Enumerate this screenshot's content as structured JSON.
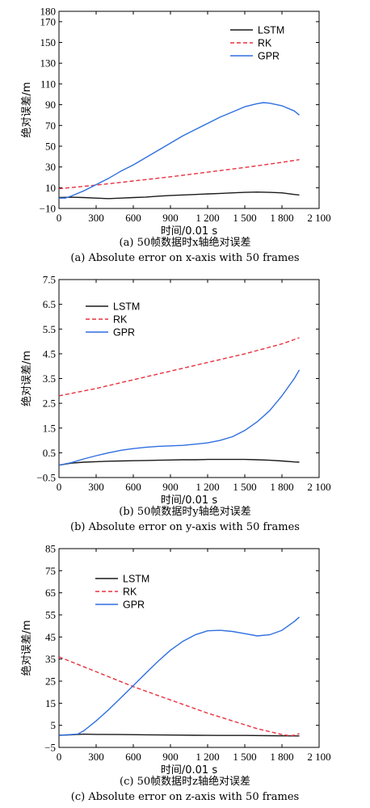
{
  "colors": {
    "lstm": "#1a1a1a",
    "rk": "#e8303e",
    "gpr": "#2f6fe0"
  },
  "chart_data": [
    {
      "type": "line",
      "ylabel": "绝对误差/m",
      "xlabel": "时间/0.01 s",
      "caption_cn": "(a) 50帧数据时x轴绝对误差",
      "caption_en": "(a) Absolute error on x-axis with 50 frames",
      "xlim": [
        0,
        2100
      ],
      "ylim": [
        -10,
        180
      ],
      "xticks": [
        0,
        300,
        600,
        900,
        1200,
        1500,
        1800,
        2100
      ],
      "xtick_labels": [
        "0",
        "300",
        "600",
        "900",
        "1 200",
        "1 500",
        "1 800",
        "2 100"
      ],
      "yticks": [
        -10,
        10,
        30,
        50,
        70,
        90,
        110,
        130,
        150,
        170
      ],
      "ytick_labels": [
        "−10",
        "10",
        "30",
        "50",
        "70",
        "90",
        "110",
        "130",
        "150",
        "170"
      ],
      "ytop_label": "180",
      "legend": "top-right",
      "series": [
        {
          "name": "LSTM",
          "style": "solid",
          "color": "#1a1a1a",
          "x": [
            0,
            100,
            200,
            300,
            400,
            500,
            600,
            700,
            800,
            900,
            1000,
            1100,
            1200,
            1300,
            1400,
            1500,
            1600,
            1700,
            1800,
            1900,
            1940
          ],
          "y": [
            0.5,
            0.8,
            0.5,
            0,
            -0.5,
            0,
            0.5,
            1,
            1.8,
            2.5,
            3,
            3.5,
            4,
            4.5,
            5,
            5.5,
            5.8,
            5.5,
            5,
            3.5,
            3
          ]
        },
        {
          "name": "RK",
          "style": "dashed",
          "color": "#e8303e",
          "x": [
            0,
            300,
            600,
            900,
            1200,
            1500,
            1800,
            1940
          ],
          "y": [
            9,
            12.5,
            16.5,
            20.5,
            25,
            29.5,
            34.5,
            37
          ]
        },
        {
          "name": "GPR",
          "style": "solid",
          "color": "#2f6fe0",
          "x": [
            0,
            50,
            100,
            200,
            300,
            400,
            500,
            600,
            700,
            800,
            900,
            1000,
            1100,
            1200,
            1300,
            1400,
            1500,
            1600,
            1650,
            1700,
            1800,
            1900,
            1940
          ],
          "y": [
            0,
            0,
            2,
            7,
            13,
            19,
            26,
            32,
            39,
            46,
            53,
            60,
            66,
            72,
            78,
            83,
            88,
            91,
            92,
            91.5,
            89,
            84,
            80
          ]
        }
      ]
    },
    {
      "type": "line",
      "ylabel": "绝对误差/m",
      "xlabel": "时间/0.01 s",
      "caption_cn": "(b) 50帧数据时y轴绝对误差",
      "caption_en": "(b) Absolute error on y-axis with 50 frames",
      "xlim": [
        0,
        2100
      ],
      "ylim": [
        -0.5,
        7.5
      ],
      "xticks": [
        0,
        300,
        600,
        900,
        1200,
        1500,
        1800,
        2100
      ],
      "xtick_labels": [
        "0",
        "300",
        "600",
        "900",
        "1 200",
        "1 500",
        "1 800",
        "2 100"
      ],
      "yticks": [
        -0.5,
        0.5,
        1.5,
        2.5,
        3.5,
        4.5,
        5.5,
        6.5,
        7.5
      ],
      "ytick_labels": [
        "−0.5",
        "0.5",
        "1.5",
        "2.5",
        "3.5",
        "4.5",
        "5.5",
        "6.5",
        "7.5"
      ],
      "legend": "top-left",
      "series": [
        {
          "name": "LSTM",
          "style": "solid",
          "color": "#1a1a1a",
          "x": [
            0,
            100,
            200,
            300,
            400,
            500,
            600,
            700,
            800,
            900,
            1000,
            1100,
            1200,
            1300,
            1400,
            1500,
            1600,
            1700,
            1800,
            1900,
            1940
          ],
          "y": [
            0.0,
            0.08,
            0.12,
            0.14,
            0.16,
            0.17,
            0.18,
            0.19,
            0.2,
            0.21,
            0.22,
            0.22,
            0.23,
            0.23,
            0.23,
            0.23,
            0.22,
            0.2,
            0.17,
            0.13,
            0.12
          ]
        },
        {
          "name": "RK",
          "style": "dashed",
          "color": "#e8303e",
          "x": [
            0,
            300,
            600,
            900,
            1200,
            1500,
            1800,
            1940
          ],
          "y": [
            2.8,
            3.1,
            3.45,
            3.8,
            4.15,
            4.5,
            4.9,
            5.15
          ]
        },
        {
          "name": "GPR",
          "style": "solid",
          "color": "#2f6fe0",
          "x": [
            0,
            100,
            200,
            300,
            400,
            500,
            600,
            700,
            800,
            900,
            1000,
            1100,
            1200,
            1300,
            1400,
            1500,
            1600,
            1700,
            1800,
            1900,
            1940
          ],
          "y": [
            0.0,
            0.1,
            0.25,
            0.38,
            0.5,
            0.6,
            0.67,
            0.72,
            0.76,
            0.78,
            0.8,
            0.85,
            0.9,
            1.0,
            1.15,
            1.4,
            1.75,
            2.2,
            2.8,
            3.5,
            3.85
          ]
        }
      ]
    },
    {
      "type": "line",
      "ylabel": "绝对误差/m",
      "xlabel": "时间/0.01 s",
      "caption_cn": "(c) 50帧数据时z轴绝对误差",
      "caption_en": "(c) Absolute error on z-axis with 50 frames",
      "xlim": [
        0,
        2100
      ],
      "ylim": [
        -5,
        85
      ],
      "xticks": [
        0,
        300,
        600,
        900,
        1200,
        1500,
        1800,
        2100
      ],
      "xtick_labels": [
        "0",
        "300",
        "600",
        "900",
        "1 200",
        "1 500",
        "1 800",
        "2 100"
      ],
      "yticks": [
        -5,
        5,
        15,
        25,
        35,
        45,
        55,
        65,
        75,
        85
      ],
      "ytick_labels": [
        "−5",
        "5",
        "15",
        "25",
        "35",
        "45",
        "55",
        "65",
        "75",
        "85"
      ],
      "legend": "top-left",
      "series": [
        {
          "name": "LSTM",
          "style": "solid",
          "color": "#1a1a1a",
          "x": [
            0,
            100,
            200,
            300,
            500,
            700,
            900,
            1100,
            1300,
            1500,
            1700,
            1900,
            1940
          ],
          "y": [
            0.5,
            0.7,
            1.0,
            0.9,
            0.8,
            0.7,
            0.6,
            0.5,
            0.4,
            0.4,
            0.3,
            0.2,
            0.2
          ]
        },
        {
          "name": "RK",
          "style": "dashed",
          "color": "#e8303e",
          "x": [
            0,
            200,
            400,
            600,
            800,
            1000,
            1200,
            1400,
            1600,
            1800,
            1860,
            1900,
            1940
          ],
          "y": [
            36,
            31.5,
            27,
            22.5,
            18.5,
            14.5,
            10.5,
            7,
            3.5,
            0.8,
            0.3,
            0.5,
            1.2
          ]
        },
        {
          "name": "GPR",
          "style": "solid",
          "color": "#2f6fe0",
          "x": [
            0,
            100,
            150,
            200,
            300,
            400,
            500,
            600,
            700,
            800,
            900,
            1000,
            1100,
            1200,
            1300,
            1400,
            1500,
            1600,
            1700,
            1800,
            1900,
            1940
          ],
          "y": [
            0.5,
            0.8,
            1.0,
            2.5,
            7,
            12,
            17.5,
            23,
            28.5,
            34,
            39,
            43,
            46,
            47.8,
            48,
            47.5,
            46.5,
            45.5,
            46,
            48,
            52,
            54
          ]
        }
      ]
    }
  ]
}
